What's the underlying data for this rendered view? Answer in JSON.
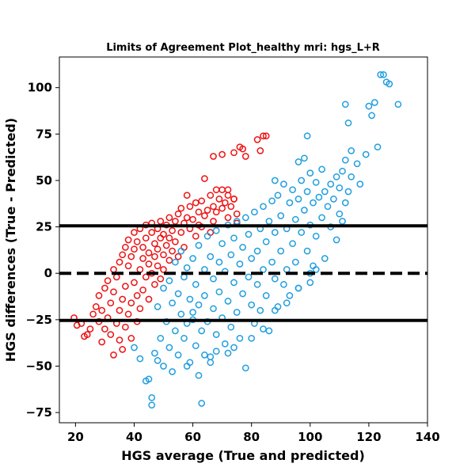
{
  "chart_data": {
    "type": "scatter",
    "title": "Limits of Agreement Plot_healthy mri: hgs_L+R",
    "xlabel": "HGS average (True and predicted)",
    "ylabel": "HGS differences (True - Predicted)",
    "xlim": [
      14.5,
      140
    ],
    "ylim": [
      -80.5,
      116.5
    ],
    "xticks": [
      20,
      40,
      60,
      80,
      100,
      120,
      140
    ],
    "yticks": [
      -75,
      -50,
      -25,
      0,
      25,
      50,
      75,
      100
    ],
    "grid": false,
    "marker": "open-circle",
    "reference_lines": [
      {
        "y": 25.6,
        "style": "solid",
        "color": "#000000"
      },
      {
        "y": 0,
        "style": "dashed",
        "color": "#000000"
      },
      {
        "y": -25.4,
        "style": "solid",
        "color": "#000000"
      }
    ],
    "series": [
      {
        "color": "#ee1111",
        "points": [
          [
            19.5,
            -24
          ],
          [
            20.5,
            -28
          ],
          [
            22,
            -27
          ],
          [
            23,
            -34
          ],
          [
            24,
            -33
          ],
          [
            25,
            -30
          ],
          [
            26,
            -22
          ],
          [
            27,
            -18
          ],
          [
            28,
            -26
          ],
          [
            28,
            -12
          ],
          [
            29,
            -37
          ],
          [
            29,
            -20
          ],
          [
            30,
            -8
          ],
          [
            30,
            -30
          ],
          [
            31,
            -4
          ],
          [
            31,
            -24
          ],
          [
            32,
            -16
          ],
          [
            32,
            -33
          ],
          [
            33,
            -44
          ],
          [
            33,
            -10
          ],
          [
            33,
            2
          ],
          [
            34,
            -2
          ],
          [
            34,
            -27
          ],
          [
            35,
            6
          ],
          [
            35,
            -20
          ],
          [
            35,
            -36
          ],
          [
            36,
            10
          ],
          [
            36,
            -14
          ],
          [
            36,
            -41
          ],
          [
            37,
            -7
          ],
          [
            37,
            14
          ],
          [
            37,
            -29
          ],
          [
            38,
            4
          ],
          [
            38,
            -22
          ],
          [
            38,
            18
          ],
          [
            39,
            9
          ],
          [
            39,
            -16
          ],
          [
            39,
            -35
          ],
          [
            40,
            13
          ],
          [
            40,
            -5
          ],
          [
            40,
            22
          ],
          [
            41,
            -12
          ],
          [
            41,
            17
          ],
          [
            41,
            -26
          ],
          [
            42,
            2
          ],
          [
            42,
            24
          ],
          [
            42,
            -19
          ],
          [
            43,
            8
          ],
          [
            43,
            14
          ],
          [
            43,
            -9
          ],
          [
            44,
            19
          ],
          [
            44,
            -2
          ],
          [
            44,
            26
          ],
          [
            45,
            11
          ],
          [
            45,
            -14
          ],
          [
            45,
            5
          ],
          [
            46,
            22
          ],
          [
            46,
            0
          ],
          [
            46,
            27
          ],
          [
            47,
            16
          ],
          [
            47,
            -6
          ],
          [
            47,
            9
          ],
          [
            48,
            24
          ],
          [
            48,
            4
          ],
          [
            48,
            13
          ],
          [
            49,
            19
          ],
          [
            49,
            -3
          ],
          [
            49,
            28
          ],
          [
            50,
            10
          ],
          [
            50,
            21
          ],
          [
            50,
            2
          ],
          [
            51,
            26
          ],
          [
            51,
            15
          ],
          [
            52,
            7
          ],
          [
            52,
            30
          ],
          [
            52,
            19
          ],
          [
            53,
            23
          ],
          [
            53,
            12
          ],
          [
            54,
            28
          ],
          [
            54,
            17
          ],
          [
            55,
            32
          ],
          [
            55,
            9
          ],
          [
            56,
            22
          ],
          [
            56,
            35
          ],
          [
            57,
            27
          ],
          [
            57,
            14
          ],
          [
            58,
            42
          ],
          [
            58,
            30
          ],
          [
            59,
            24
          ],
          [
            59,
            36
          ],
          [
            60,
            29
          ],
          [
            61,
            38
          ],
          [
            61,
            20
          ],
          [
            62,
            33
          ],
          [
            62,
            26
          ],
          [
            63,
            39
          ],
          [
            63,
            25
          ],
          [
            64,
            31
          ],
          [
            64,
            51
          ],
          [
            65,
            34
          ],
          [
            66,
            42
          ],
          [
            66,
            22
          ],
          [
            67,
            36
          ],
          [
            67,
            28
          ],
          [
            68,
            45
          ],
          [
            68,
            33
          ],
          [
            69,
            40
          ],
          [
            70,
            45
          ],
          [
            70,
            35
          ],
          [
            71,
            38
          ],
          [
            72,
            42
          ],
          [
            72,
            30
          ],
          [
            73,
            36
          ],
          [
            74,
            40
          ],
          [
            74,
            65
          ],
          [
            75,
            27
          ],
          [
            75,
            32
          ],
          [
            76,
            68
          ],
          [
            77,
            67
          ],
          [
            78,
            63
          ],
          [
            82,
            72
          ],
          [
            83,
            66
          ],
          [
            84,
            74
          ],
          [
            85,
            74
          ],
          [
            67,
            63
          ],
          [
            70,
            64
          ],
          [
            72,
            45
          ],
          [
            74,
            40
          ]
        ]
      },
      {
        "color": "#1f9ee0",
        "points": [
          [
            40,
            -40
          ],
          [
            42,
            -46
          ],
          [
            44,
            -58
          ],
          [
            45,
            -57
          ],
          [
            46,
            -67
          ],
          [
            46,
            -71
          ],
          [
            47,
            -43
          ],
          [
            48,
            -47
          ],
          [
            48,
            -18
          ],
          [
            49,
            -35
          ],
          [
            50,
            -8
          ],
          [
            50,
            -50
          ],
          [
            51,
            -26
          ],
          [
            52,
            -40
          ],
          [
            52,
            -4
          ],
          [
            53,
            -16
          ],
          [
            53,
            -53
          ],
          [
            54,
            -31
          ],
          [
            54,
            6
          ],
          [
            55,
            -11
          ],
          [
            55,
            -44
          ],
          [
            56,
            -22
          ],
          [
            56,
            12
          ],
          [
            57,
            -2
          ],
          [
            57,
            -35
          ],
          [
            58,
            3
          ],
          [
            58,
            -27
          ],
          [
            59,
            -14
          ],
          [
            59,
            -48
          ],
          [
            60,
            8
          ],
          [
            60,
            -21
          ],
          [
            61,
            -6
          ],
          [
            61,
            -39
          ],
          [
            62,
            15
          ],
          [
            62,
            -17
          ],
          [
            63,
            -31
          ],
          [
            63,
            -70
          ],
          [
            64,
            2
          ],
          [
            64,
            -12
          ],
          [
            65,
            20
          ],
          [
            65,
            -26
          ],
          [
            66,
            9
          ],
          [
            66,
            -45
          ],
          [
            67,
            -3
          ],
          [
            67,
            -19
          ],
          [
            68,
            23
          ],
          [
            68,
            -33
          ],
          [
            69,
            6
          ],
          [
            69,
            -10
          ],
          [
            70,
            -24
          ],
          [
            70,
            16
          ],
          [
            71,
            1
          ],
          [
            71,
            -38
          ],
          [
            72,
            26
          ],
          [
            72,
            -15
          ],
          [
            73,
            10
          ],
          [
            73,
            -29
          ],
          [
            74,
            -5
          ],
          [
            74,
            19
          ],
          [
            75,
            28
          ],
          [
            75,
            -21
          ],
          [
            76,
            5
          ],
          [
            76,
            -35
          ],
          [
            77,
            14
          ],
          [
            77,
            -11
          ],
          [
            78,
            -51
          ],
          [
            78,
            30
          ],
          [
            79,
            -2
          ],
          [
            79,
            21
          ],
          [
            80,
            -17
          ],
          [
            80,
            8
          ],
          [
            81,
            33
          ],
          [
            81,
            -27
          ],
          [
            82,
            12
          ],
          [
            82,
            -6
          ],
          [
            83,
            24
          ],
          [
            83,
            -20
          ],
          [
            84,
            36
          ],
          [
            84,
            2
          ],
          [
            85,
            -12
          ],
          [
            85,
            17
          ],
          [
            86,
            28
          ],
          [
            86,
            -31
          ],
          [
            87,
            39
          ],
          [
            87,
            6
          ],
          [
            88,
            -3
          ],
          [
            88,
            22
          ],
          [
            89,
            42
          ],
          [
            89,
            -18
          ],
          [
            90,
            12
          ],
          [
            90,
            31
          ],
          [
            91,
            48
          ],
          [
            91,
            -6
          ],
          [
            92,
            24
          ],
          [
            92,
            2
          ],
          [
            93,
            38
          ],
          [
            93,
            -12
          ],
          [
            94,
            16
          ],
          [
            94,
            45
          ],
          [
            95,
            29
          ],
          [
            95,
            6
          ],
          [
            96,
            40
          ],
          [
            96,
            -8
          ],
          [
            97,
            22
          ],
          [
            97,
            50
          ],
          [
            98,
            34
          ],
          [
            98,
            62
          ],
          [
            99,
            12
          ],
          [
            99,
            44
          ],
          [
            100,
            26
          ],
          [
            100,
            54
          ],
          [
            101,
            38
          ],
          [
            101,
            4
          ],
          [
            102,
            49
          ],
          [
            102,
            20
          ],
          [
            103,
            41
          ],
          [
            104,
            30
          ],
          [
            104,
            56
          ],
          [
            105,
            44
          ],
          [
            105,
            8
          ],
          [
            106,
            36
          ],
          [
            107,
            25
          ],
          [
            107,
            48
          ],
          [
            108,
            40
          ],
          [
            109,
            18
          ],
          [
            109,
            52
          ],
          [
            110,
            32
          ],
          [
            110,
            46
          ],
          [
            111,
            55
          ],
          [
            111,
            28
          ],
          [
            112,
            61
          ],
          [
            112,
            38
          ],
          [
            113,
            44
          ],
          [
            114,
            66
          ],
          [
            114,
            52
          ],
          [
            116,
            59
          ],
          [
            117,
            48
          ],
          [
            119,
            64
          ],
          [
            120,
            90
          ],
          [
            121,
            85
          ],
          [
            122,
            92
          ],
          [
            123,
            68
          ],
          [
            124,
            107
          ],
          [
            125,
            107
          ],
          [
            126,
            103
          ],
          [
            127,
            102
          ],
          [
            130,
            91
          ],
          [
            99,
            74
          ],
          [
            112,
            91
          ],
          [
            113,
            81
          ],
          [
            96,
            60
          ],
          [
            88,
            50
          ],
          [
            60,
            -25
          ],
          [
            58,
            -50
          ],
          [
            62,
            -55
          ],
          [
            64,
            -44
          ],
          [
            66,
            -48
          ],
          [
            68,
            -42
          ],
          [
            72,
            -43
          ],
          [
            74,
            -40
          ],
          [
            80,
            -35
          ],
          [
            84,
            -30
          ],
          [
            88,
            -20
          ],
          [
            92,
            -16
          ],
          [
            96,
            -8
          ],
          [
            100,
            0
          ],
          [
            102,
            2
          ],
          [
            100,
            -5
          ]
        ]
      }
    ]
  }
}
